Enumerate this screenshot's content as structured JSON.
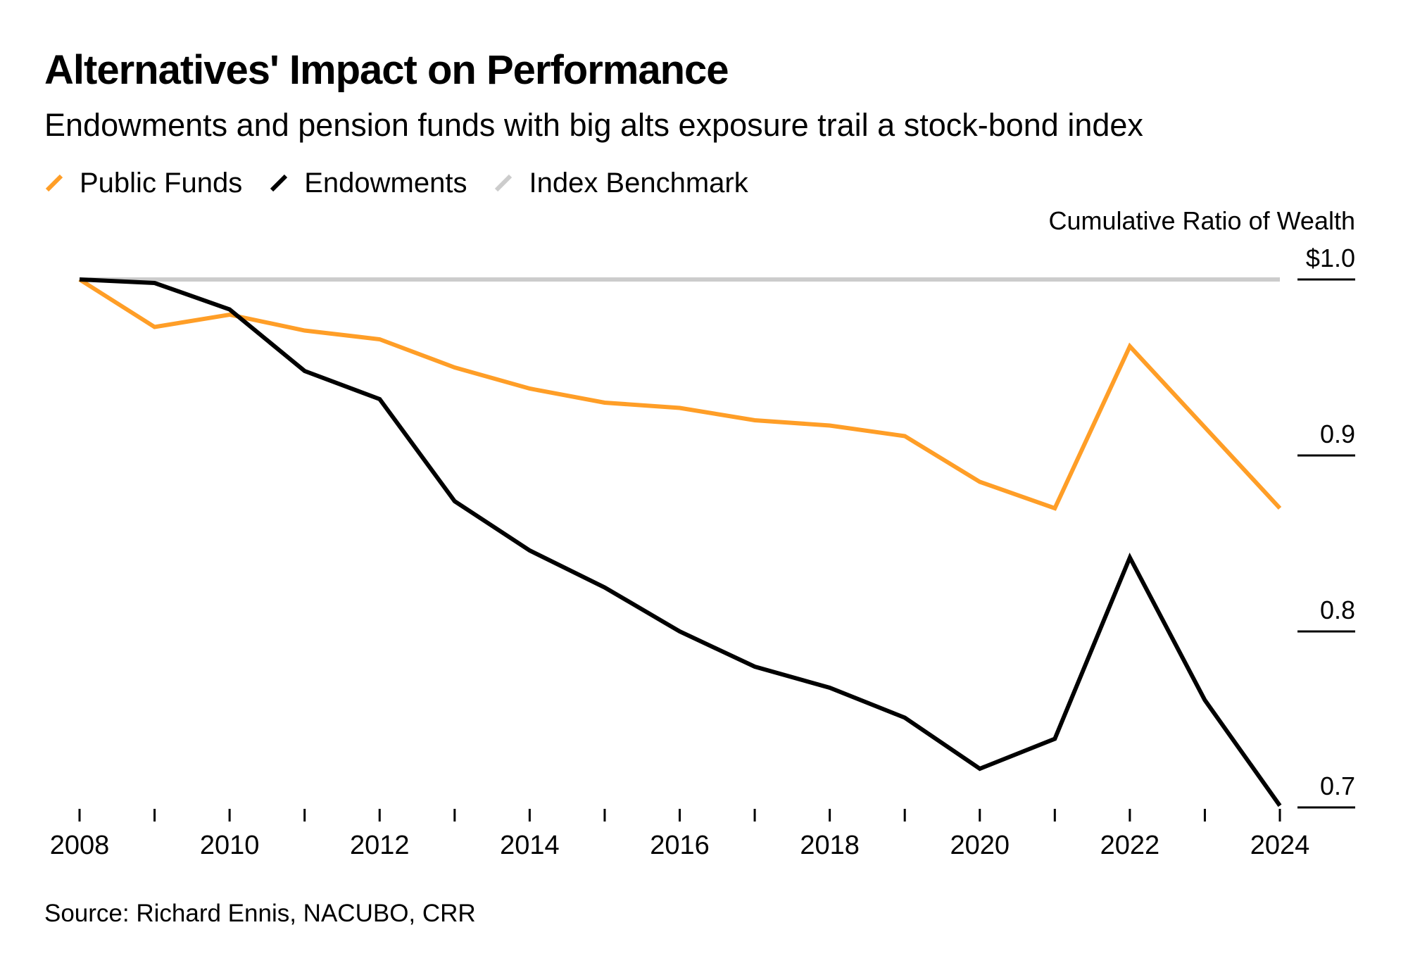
{
  "title": "Alternatives' Impact on Performance",
  "subtitle": "Endowments and pension funds with big alts exposure trail a stock-bond index",
  "source": "Source: Richard Ennis, NACUBO, CRR",
  "colors": {
    "public_funds": "#ff9e27",
    "endowments": "#000000",
    "index_benchmark": "#cccccc",
    "axis": "#000000"
  },
  "chart_data": {
    "type": "line",
    "title": "Alternatives' Impact on Performance",
    "subtitle": "Endowments and pension funds with big alts exposure trail a stock-bond index",
    "xlabel": "",
    "ylabel": "Cumulative Ratio of Wealth",
    "x": [
      2008,
      2009,
      2010,
      2011,
      2012,
      2013,
      2014,
      2015,
      2016,
      2017,
      2018,
      2019,
      2020,
      2021,
      2022,
      2023,
      2024
    ],
    "series": [
      {
        "name": "Public Funds",
        "color": "#ff9e27",
        "values": [
          1.0,
          0.973,
          0.98,
          0.971,
          0.966,
          0.95,
          0.938,
          0.93,
          0.927,
          0.92,
          0.917,
          0.911,
          0.885,
          0.87,
          0.962,
          0.916,
          0.87
        ]
      },
      {
        "name": "Endowments",
        "color": "#000000",
        "values": [
          1.0,
          0.998,
          0.983,
          0.948,
          0.932,
          0.874,
          0.846,
          0.825,
          0.8,
          0.78,
          0.768,
          0.751,
          0.722,
          0.739,
          0.842,
          0.761,
          0.701
        ]
      },
      {
        "name": "Index Benchmark",
        "color": "#cccccc",
        "values": [
          1.0,
          1.0,
          1.0,
          1.0,
          1.0,
          1.0,
          1.0,
          1.0,
          1.0,
          1.0,
          1.0,
          1.0,
          1.0,
          1.0,
          1.0,
          1.0,
          1.0
        ]
      }
    ],
    "x_tick_labels": [
      "2008",
      "2010",
      "2012",
      "2014",
      "2016",
      "2018",
      "2020",
      "2022",
      "2024"
    ],
    "y_ticks": [
      1.0,
      0.9,
      0.8,
      0.7
    ],
    "y_tick_labels": [
      "$1.0",
      "0.9",
      "0.8",
      "0.7"
    ],
    "xlim": [
      2008,
      2024
    ],
    "ylim": [
      0.7,
      1.0
    ],
    "grid": false,
    "legend_position": "top-left",
    "y_axis_position": "right"
  }
}
